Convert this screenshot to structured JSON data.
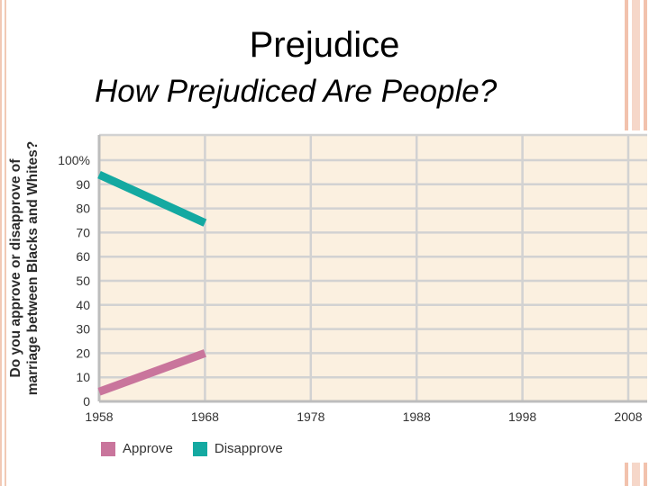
{
  "slide": {
    "title": "Prejudice",
    "subtitle": "How Prejudiced Are People?"
  },
  "chart_data": {
    "type": "line",
    "title": "",
    "ylabel_line1": "Do you approve or disapprove of",
    "ylabel_line2": "marriage between Blacks and Whites?",
    "xlabel": "",
    "x_ticks": [
      "1958",
      "1968",
      "1978",
      "1988",
      "1998",
      "2008"
    ],
    "y_ticks": [
      "0",
      "10",
      "20",
      "30",
      "40",
      "50",
      "60",
      "70",
      "80",
      "90",
      "100%"
    ],
    "xlim": [
      1958,
      2008
    ],
    "ylim": [
      0,
      100
    ],
    "grid": true,
    "legend_position": "bottom-left",
    "series": [
      {
        "name": "Approve",
        "color": "#c9759c",
        "x": [
          1958,
          1968
        ],
        "y": [
          4,
          20
        ]
      },
      {
        "name": "Disapprove",
        "color": "#14a9a1",
        "x": [
          1958,
          1968
        ],
        "y": [
          94,
          74
        ]
      }
    ],
    "plot_background": "#fbf0e0",
    "grid_color": "#d2d2d2"
  }
}
